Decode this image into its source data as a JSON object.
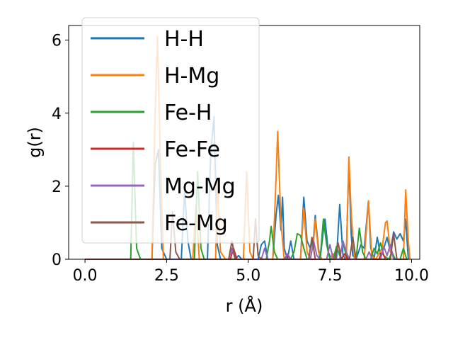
{
  "chart_data": {
    "type": "line",
    "title": "",
    "xlabel": "r (Å)",
    "ylabel": "g(r)",
    "xlim": [
      -0.5,
      10.25
    ],
    "ylim": [
      0,
      6.4
    ],
    "xticks": [
      0.0,
      2.5,
      5.0,
      7.5,
      10.0
    ],
    "xtick_labels": [
      "0.0",
      "2.5",
      "5.0",
      "7.5",
      "10.0"
    ],
    "yticks": [
      0,
      2,
      4,
      6
    ],
    "ytick_labels": [
      "0",
      "2",
      "4",
      "6"
    ],
    "grid": false,
    "legend_position": "top-left",
    "series": [
      {
        "name": "H-H",
        "color": "#1f77b4",
        "points": [
          [
            0,
            0
          ],
          [
            2.05,
            0
          ],
          [
            2.15,
            2.6
          ],
          [
            2.25,
            3.0
          ],
          [
            2.35,
            0.3
          ],
          [
            2.5,
            0
          ],
          [
            2.95,
            0
          ],
          [
            3.05,
            1.9
          ],
          [
            3.15,
            0.5
          ],
          [
            3.25,
            0
          ],
          [
            3.75,
            0
          ],
          [
            3.85,
            2.9
          ],
          [
            3.95,
            3.9
          ],
          [
            4.05,
            0.4
          ],
          [
            4.15,
            0
          ],
          [
            4.6,
            0
          ],
          [
            4.7,
            0.1
          ],
          [
            4.8,
            0
          ],
          [
            5.3,
            0
          ],
          [
            5.4,
            0.4
          ],
          [
            5.5,
            0.5
          ],
          [
            5.6,
            0
          ],
          [
            5.75,
            0
          ],
          [
            5.85,
            1.2
          ],
          [
            5.92,
            1.75
          ],
          [
            6.0,
            0.8
          ],
          [
            6.05,
            1.7
          ],
          [
            6.1,
            0.3
          ],
          [
            6.2,
            0
          ],
          [
            6.3,
            0.5
          ],
          [
            6.4,
            0
          ],
          [
            6.6,
            0
          ],
          [
            6.7,
            1.7
          ],
          [
            6.8,
            0.5
          ],
          [
            6.9,
            0.3
          ],
          [
            7.0,
            0.6
          ],
          [
            7.05,
            1.2
          ],
          [
            7.15,
            0.3
          ],
          [
            7.2,
            0
          ],
          [
            7.3,
            0.8
          ],
          [
            7.35,
            1.1
          ],
          [
            7.45,
            0.2
          ],
          [
            7.55,
            0
          ],
          [
            7.7,
            0
          ],
          [
            7.8,
            1.5
          ],
          [
            7.9,
            0.1
          ],
          [
            8.0,
            0
          ],
          [
            8.08,
            2.7
          ],
          [
            8.15,
            0.7
          ],
          [
            8.2,
            0.1
          ],
          [
            8.3,
            0
          ],
          [
            8.45,
            0.4
          ],
          [
            8.55,
            0.3
          ],
          [
            8.68,
            1.6
          ],
          [
            8.75,
            0.3
          ],
          [
            8.85,
            0
          ],
          [
            8.95,
            0.6
          ],
          [
            9.05,
            0.1
          ],
          [
            9.15,
            0.3
          ],
          [
            9.25,
            0.6
          ],
          [
            9.35,
            0.2
          ],
          [
            9.45,
            0.75
          ],
          [
            9.55,
            0.55
          ],
          [
            9.65,
            0.7
          ],
          [
            9.75,
            0.5
          ],
          [
            9.82,
            1.1
          ],
          [
            9.9,
            0
          ]
        ]
      },
      {
        "name": "H-Mg",
        "color": "#ff7f0e",
        "points": [
          [
            0,
            0
          ],
          [
            2.05,
            0
          ],
          [
            2.15,
            4.0
          ],
          [
            2.22,
            6.1
          ],
          [
            2.3,
            3.0
          ],
          [
            2.4,
            0
          ],
          [
            3.3,
            0
          ],
          [
            3.4,
            1.5
          ],
          [
            3.5,
            0
          ],
          [
            4.0,
            0
          ],
          [
            4.05,
            2.2
          ],
          [
            4.15,
            0.2
          ],
          [
            4.3,
            0
          ],
          [
            4.85,
            0
          ],
          [
            4.95,
            2.4
          ],
          [
            5.05,
            0.2
          ],
          [
            5.15,
            0
          ],
          [
            5.75,
            0
          ],
          [
            5.85,
            2.2
          ],
          [
            5.9,
            3.5
          ],
          [
            6.0,
            1.0
          ],
          [
            6.1,
            0
          ],
          [
            6.6,
            0
          ],
          [
            6.7,
            1.4
          ],
          [
            6.8,
            0.2
          ],
          [
            6.9,
            0
          ],
          [
            7.0,
            0.5
          ],
          [
            7.05,
            1.1
          ],
          [
            7.15,
            0.2
          ],
          [
            7.25,
            0
          ],
          [
            7.5,
            0
          ],
          [
            7.6,
            0.15
          ],
          [
            7.7,
            0
          ],
          [
            8.0,
            0
          ],
          [
            8.08,
            2.8
          ],
          [
            8.15,
            1.3
          ],
          [
            8.25,
            0
          ],
          [
            8.55,
            0
          ],
          [
            8.68,
            1.6
          ],
          [
            8.78,
            0.1
          ],
          [
            8.9,
            0
          ],
          [
            9.1,
            0.3
          ],
          [
            9.2,
            1.0
          ],
          [
            9.25,
            1.05
          ],
          [
            9.35,
            0.2
          ],
          [
            9.5,
            0
          ],
          [
            9.75,
            0
          ],
          [
            9.82,
            1.9
          ],
          [
            9.9,
            0.5
          ],
          [
            9.95,
            0
          ]
        ]
      },
      {
        "name": "Fe-H",
        "color": "#2ca02c",
        "points": [
          [
            0,
            0
          ],
          [
            1.4,
            0
          ],
          [
            1.48,
            3.2
          ],
          [
            1.58,
            0.3
          ],
          [
            1.7,
            0
          ],
          [
            3.35,
            0
          ],
          [
            3.45,
            2.4
          ],
          [
            3.55,
            0.3
          ],
          [
            3.65,
            0
          ],
          [
            5.55,
            0
          ],
          [
            5.65,
            0.5
          ],
          [
            5.7,
            0.9
          ],
          [
            5.8,
            0.2
          ],
          [
            5.9,
            0
          ],
          [
            6.3,
            0
          ],
          [
            6.4,
            0.2
          ],
          [
            6.5,
            0.7
          ],
          [
            6.6,
            0.65
          ],
          [
            6.7,
            0.3
          ],
          [
            6.8,
            0
          ],
          [
            7.2,
            0
          ],
          [
            7.3,
            1.1
          ],
          [
            7.4,
            0.4
          ],
          [
            7.5,
            0
          ],
          [
            7.6,
            0
          ],
          [
            7.7,
            0.35
          ],
          [
            7.8,
            0.1
          ],
          [
            7.9,
            0.45
          ],
          [
            8.0,
            0.1
          ],
          [
            8.1,
            0
          ],
          [
            8.3,
            0
          ],
          [
            8.4,
            0.85
          ],
          [
            8.5,
            0.2
          ],
          [
            8.6,
            0
          ],
          [
            8.75,
            0
          ],
          [
            8.85,
            0.3
          ],
          [
            8.95,
            0.15
          ],
          [
            9.05,
            0.45
          ],
          [
            9.15,
            0.1
          ],
          [
            9.3,
            0
          ],
          [
            9.4,
            0.2
          ],
          [
            9.5,
            0
          ],
          [
            9.65,
            0
          ],
          [
            9.75,
            0.3
          ],
          [
            9.85,
            0
          ]
        ]
      },
      {
        "name": "Fe-Fe",
        "color": "#d62728",
        "points": [
          [
            0,
            0
          ],
          [
            4.45,
            0
          ],
          [
            4.55,
            0.3
          ],
          [
            4.65,
            0
          ],
          [
            6.1,
            0
          ],
          [
            6.2,
            0.1
          ],
          [
            6.3,
            0
          ],
          [
            7.85,
            0
          ],
          [
            7.95,
            0.15
          ],
          [
            8.05,
            0
          ],
          [
            9.0,
            0
          ],
          [
            9.1,
            0.2
          ],
          [
            9.2,
            0
          ]
        ]
      },
      {
        "name": "Mg-Mg",
        "color": "#9467bd",
        "points": [
          [
            0,
            0
          ],
          [
            4.4,
            0
          ],
          [
            4.5,
            0.3
          ],
          [
            4.6,
            0
          ],
          [
            5.4,
            0
          ],
          [
            5.5,
            0.3
          ],
          [
            5.6,
            0
          ],
          [
            6.1,
            0
          ],
          [
            6.2,
            0.15
          ],
          [
            6.3,
            0
          ],
          [
            6.9,
            0
          ],
          [
            7.0,
            0.5
          ],
          [
            7.1,
            0.1
          ],
          [
            7.2,
            0
          ],
          [
            7.4,
            0
          ],
          [
            7.5,
            0.4
          ],
          [
            7.6,
            0
          ],
          [
            7.8,
            0
          ],
          [
            7.9,
            0.5
          ],
          [
            8.0,
            0.2
          ],
          [
            8.1,
            0
          ],
          [
            8.6,
            0
          ],
          [
            8.7,
            0.2
          ],
          [
            8.8,
            0
          ],
          [
            9.05,
            0
          ],
          [
            9.15,
            0.35
          ],
          [
            9.25,
            0.1
          ],
          [
            9.35,
            0.4
          ],
          [
            9.45,
            0
          ],
          [
            9.9,
            0
          ]
        ]
      },
      {
        "name": "Fe-Mg",
        "color": "#8c564b",
        "points": [
          [
            0,
            0
          ],
          [
            2.6,
            0
          ],
          [
            2.68,
            1.3
          ],
          [
            2.78,
            0.2
          ],
          [
            2.9,
            0
          ],
          [
            4.4,
            0
          ],
          [
            4.5,
            0.5
          ],
          [
            4.6,
            0
          ],
          [
            5.15,
            0
          ],
          [
            5.22,
            1.1
          ],
          [
            5.3,
            0.1
          ],
          [
            5.4,
            0
          ],
          [
            6.85,
            0
          ],
          [
            6.95,
            0.6
          ],
          [
            7.05,
            0
          ],
          [
            7.65,
            0
          ],
          [
            7.75,
            0.45
          ],
          [
            7.85,
            0
          ],
          [
            8.1,
            0
          ],
          [
            8.2,
            0.6
          ],
          [
            8.3,
            0
          ],
          [
            9.35,
            0
          ],
          [
            9.45,
            0.7
          ],
          [
            9.55,
            0
          ],
          [
            9.9,
            0
          ]
        ]
      }
    ]
  }
}
